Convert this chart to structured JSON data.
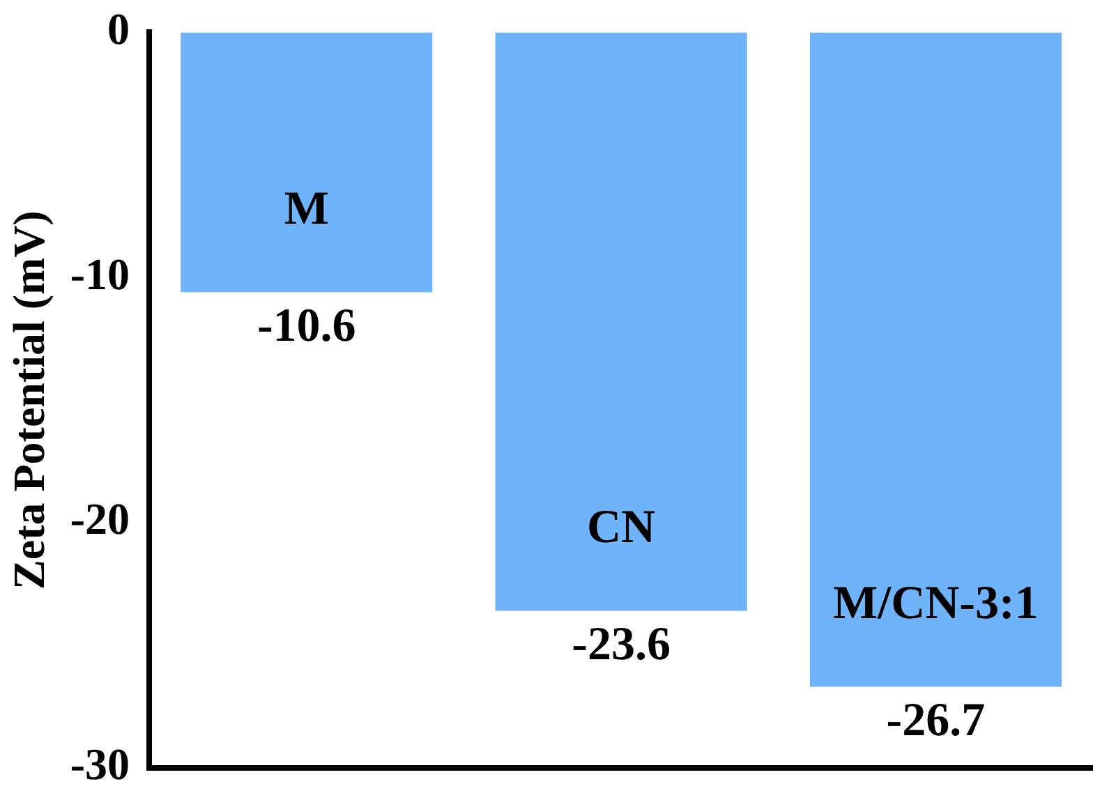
{
  "chart_data": {
    "type": "bar",
    "ylabel": "Zeta Potential (mV)",
    "categories": [
      "M",
      "CN",
      "M/CN-3:1"
    ],
    "values": [
      -10.6,
      -23.6,
      -26.7
    ],
    "color": "#6fb4fa",
    "ylim": [
      -30,
      0
    ],
    "yticks": [
      0,
      -10,
      -20,
      -30
    ],
    "data_labels": true,
    "grid": false,
    "legend": false
  }
}
